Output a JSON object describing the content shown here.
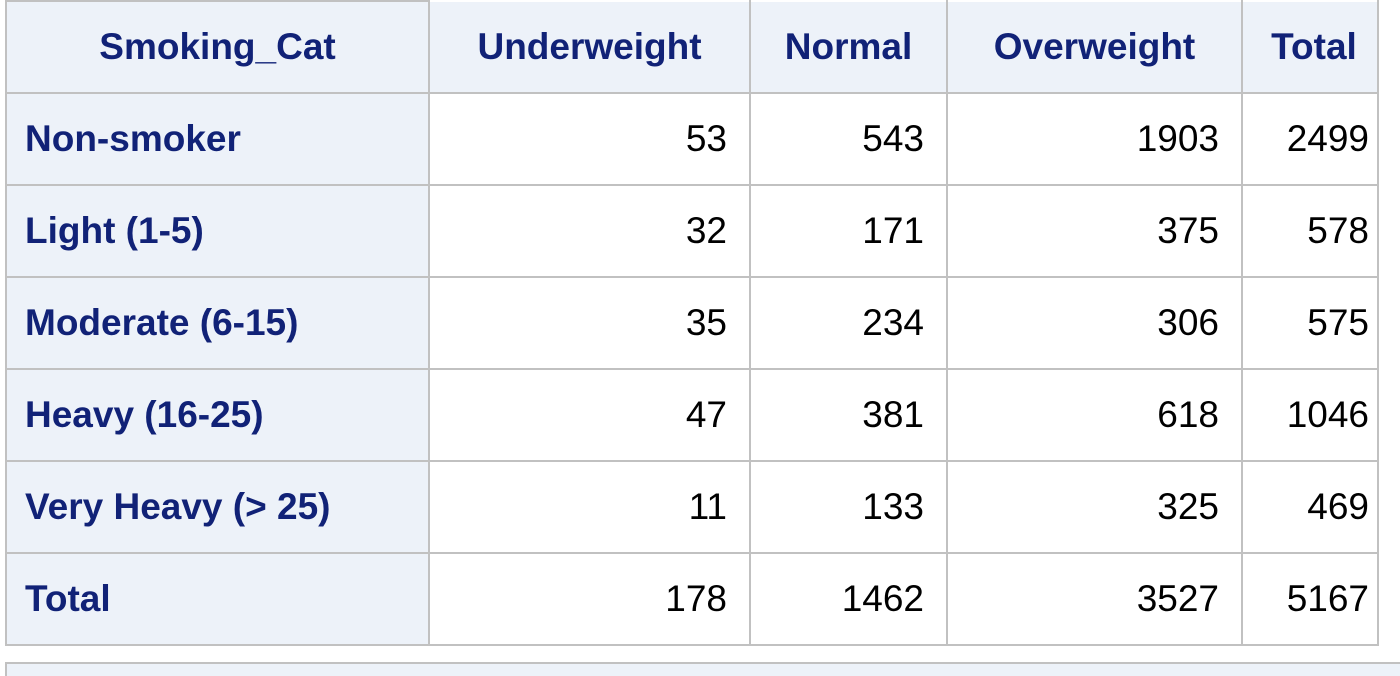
{
  "table": {
    "corner_header": "Smoking_Cat",
    "columns": [
      "Underweight",
      "Normal",
      "Overweight",
      "Total"
    ],
    "rows": [
      {
        "label": "Non-smoker",
        "values": [
          "53",
          "543",
          "1903",
          "2499"
        ]
      },
      {
        "label": "Light (1-5)",
        "values": [
          "32",
          "171",
          "375",
          "578"
        ]
      },
      {
        "label": "Moderate (6-15)",
        "values": [
          "35",
          "234",
          "306",
          "575"
        ]
      },
      {
        "label": "Heavy (16-25)",
        "values": [
          "47",
          "381",
          "618",
          "1046"
        ]
      },
      {
        "label": "Very Heavy (> 25)",
        "values": [
          "11",
          "133",
          "325",
          "469"
        ]
      },
      {
        "label": "Total",
        "values": [
          "178",
          "1462",
          "3527",
          "5167"
        ]
      }
    ]
  },
  "colors": {
    "header_background": "#edf2f9",
    "header_text": "#112277",
    "grid_line": "#c1c1c1",
    "cell_text": "#000000"
  }
}
